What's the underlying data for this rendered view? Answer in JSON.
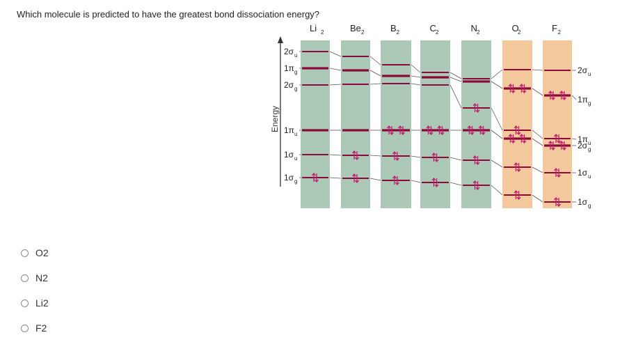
{
  "question": "Which molecule is predicted to have the greatest bond dissociation energy?",
  "diagram": {
    "y_axis_label": "Energy",
    "molecules": [
      "Li",
      "Be",
      "B",
      "C",
      "N",
      "O",
      "F"
    ],
    "subscript": "2",
    "left_labels": [
      {
        "sym": "2σ",
        "sub": "u"
      },
      {
        "sym": "1π",
        "sub": "g"
      },
      {
        "sym": "2σ",
        "sub": "g"
      },
      {
        "sym": "1π",
        "sub": "u"
      },
      {
        "sym": "1σ",
        "sub": "u"
      },
      {
        "sym": "1σ",
        "sub": "g"
      }
    ],
    "right_labels": [
      {
        "sym": "2σ",
        "sub": "u"
      },
      {
        "sym": "1π",
        "sub": "g"
      },
      {
        "sym": "1π",
        "sub": "u"
      },
      {
        "sym": "2σ",
        "sub": "g"
      },
      {
        "sym": "1σ",
        "sub": "u"
      },
      {
        "sym": "1σ",
        "sub": "g"
      }
    ],
    "colors": {
      "green": "#abc9b6",
      "orange": "#f2c89c",
      "line": "#8b0a3a",
      "arrow": "#c0186b"
    }
  },
  "options": [
    {
      "label": "O2",
      "selected": false
    },
    {
      "label": "N2",
      "selected": false
    },
    {
      "label": "Li2",
      "selected": false
    },
    {
      "label": "F2",
      "selected": false
    }
  ]
}
